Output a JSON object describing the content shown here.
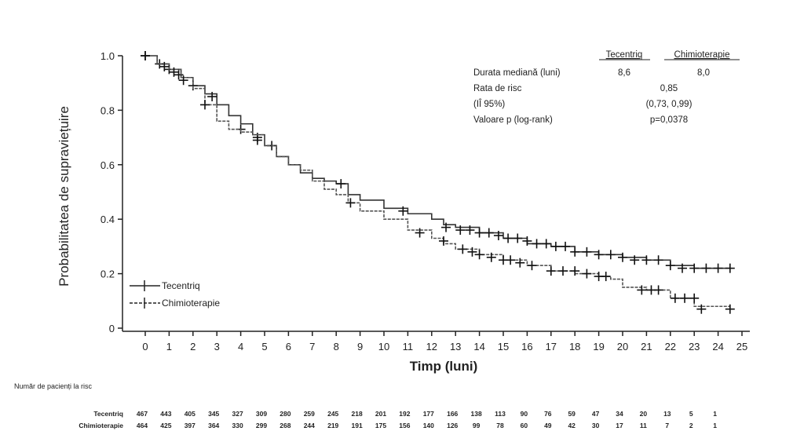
{
  "chart_data": {
    "type": "line",
    "title": "",
    "xlabel": "Timp (luni)",
    "ylabel": "Probabilitatea de supraviețuire",
    "xlim": [
      0,
      25
    ],
    "ylim": [
      0,
      1.0
    ],
    "x_ticks": [
      "0",
      "1",
      "2",
      "3",
      "4",
      "5",
      "6",
      "7",
      "8",
      "9",
      "10",
      "11",
      "12",
      "13",
      "14",
      "15",
      "16",
      "17",
      "18",
      "19",
      "20",
      "21",
      "22",
      "23",
      "24",
      "25"
    ],
    "y_ticks": [
      "0",
      "0.2",
      "0.4",
      "0.6",
      "0.8",
      "1.0"
    ],
    "y_tick_values": [
      0,
      0.2,
      0.4,
      0.6,
      0.8,
      1.0
    ],
    "grid": false,
    "legend_position": "bottom-left",
    "series": [
      {
        "name": "Tecentriq",
        "style": "solid",
        "color": "#333333",
        "x": [
          0,
          0.5,
          1,
          1.5,
          2,
          2.5,
          3,
          3.5,
          4,
          4.5,
          5,
          5.5,
          6,
          6.5,
          7,
          7.5,
          8,
          8.5,
          9,
          10,
          11,
          12,
          12.5,
          13,
          14,
          15,
          16,
          17,
          18,
          19,
          20,
          21,
          22,
          23,
          24,
          24.5
        ],
        "y": [
          1.0,
          0.97,
          0.95,
          0.92,
          0.89,
          0.86,
          0.82,
          0.78,
          0.75,
          0.71,
          0.67,
          0.63,
          0.6,
          0.57,
          0.55,
          0.54,
          0.53,
          0.49,
          0.47,
          0.44,
          0.42,
          0.4,
          0.38,
          0.37,
          0.35,
          0.33,
          0.31,
          0.3,
          0.28,
          0.27,
          0.26,
          0.25,
          0.23,
          0.22,
          0.22,
          0.22
        ],
        "censor_x": [
          0,
          0.6,
          1,
          1.4,
          2,
          2.8,
          4,
          4.7,
          5.3,
          8.2,
          10.8,
          12.6,
          13.2,
          13.6,
          14,
          14.4,
          14.8,
          15.2,
          15.6,
          16,
          16.4,
          16.8,
          17.2,
          17.6,
          18,
          18.5,
          19,
          19.5,
          20,
          20.5,
          21,
          21.5,
          22,
          22.5,
          23,
          23.5,
          24,
          24.5
        ],
        "censor_y": [
          1.0,
          0.97,
          0.95,
          0.93,
          0.89,
          0.85,
          0.73,
          0.7,
          0.67,
          0.53,
          0.43,
          0.37,
          0.36,
          0.36,
          0.35,
          0.35,
          0.34,
          0.33,
          0.33,
          0.32,
          0.31,
          0.31,
          0.3,
          0.3,
          0.28,
          0.28,
          0.27,
          0.27,
          0.26,
          0.25,
          0.25,
          0.25,
          0.23,
          0.22,
          0.22,
          0.22,
          0.22,
          0.22
        ]
      },
      {
        "name": "Chimioterapie",
        "style": "dashed",
        "color": "#555555",
        "x": [
          0,
          0.5,
          1,
          1.5,
          2,
          2.5,
          3,
          3.5,
          4,
          4.5,
          5,
          5.5,
          6,
          6.5,
          7,
          7.5,
          8,
          8.5,
          9,
          10,
          11,
          12,
          12.5,
          13,
          14,
          15,
          16,
          17,
          18,
          19,
          19.5,
          20,
          21,
          21.5,
          22,
          23,
          23,
          24.5
        ],
        "y": [
          1.0,
          0.97,
          0.95,
          0.92,
          0.88,
          0.82,
          0.76,
          0.73,
          0.72,
          0.71,
          0.67,
          0.63,
          0.6,
          0.58,
          0.54,
          0.51,
          0.49,
          0.46,
          0.43,
          0.4,
          0.36,
          0.33,
          0.31,
          0.29,
          0.27,
          0.25,
          0.23,
          0.21,
          0.2,
          0.19,
          0.18,
          0.15,
          0.14,
          0.14,
          0.11,
          0.11,
          0.08,
          0.07
        ],
        "censor_x": [
          0,
          0.8,
          1.2,
          1.6,
          2.5,
          4.7,
          8.6,
          11.5,
          12.5,
          13.3,
          13.7,
          14,
          14.5,
          15,
          15.3,
          15.7,
          16.2,
          17,
          17.5,
          18,
          18.5,
          19,
          19.3,
          20.8,
          21.2,
          21.5,
          22.2,
          22.6,
          23,
          23.3,
          24.5
        ],
        "censor_y": [
          1.0,
          0.96,
          0.94,
          0.91,
          0.82,
          0.69,
          0.46,
          0.35,
          0.32,
          0.29,
          0.28,
          0.27,
          0.26,
          0.25,
          0.25,
          0.24,
          0.23,
          0.21,
          0.21,
          0.21,
          0.2,
          0.19,
          0.19,
          0.14,
          0.14,
          0.14,
          0.11,
          0.11,
          0.11,
          0.07,
          0.07
        ]
      }
    ],
    "stats_table": {
      "col_headers": [
        "Tecentriq",
        "Chimioterapie"
      ],
      "rows": [
        {
          "label": "Durata mediană (luni)",
          "tecentriq": "8,6",
          "chimio": "8,0"
        },
        {
          "label": "Rata de risc",
          "combined": "0,85"
        },
        {
          "label": "(IÎ 95%)",
          "combined": "(0,73, 0,99)"
        },
        {
          "label": "Valoare p (log-rank)",
          "combined": "p=0,0378"
        }
      ]
    },
    "at_risk": {
      "title": "Număr de pacienți la risc",
      "rows": [
        {
          "label": "Tecentriq",
          "values": [
            "467",
            "443",
            "405",
            "345",
            "327",
            "309",
            "280",
            "259",
            "245",
            "218",
            "201",
            "192",
            "177",
            "166",
            "138",
            "113",
            "90",
            "76",
            "59",
            "47",
            "34",
            "20",
            "13",
            "5",
            "1"
          ]
        },
        {
          "label": "Chimioterapie",
          "values": [
            "464",
            "425",
            "397",
            "364",
            "330",
            "299",
            "268",
            "244",
            "219",
            "191",
            "175",
            "156",
            "140",
            "126",
            "99",
            "78",
            "60",
            "49",
            "42",
            "30",
            "17",
            "11",
            "7",
            "2",
            "1"
          ]
        }
      ]
    }
  }
}
